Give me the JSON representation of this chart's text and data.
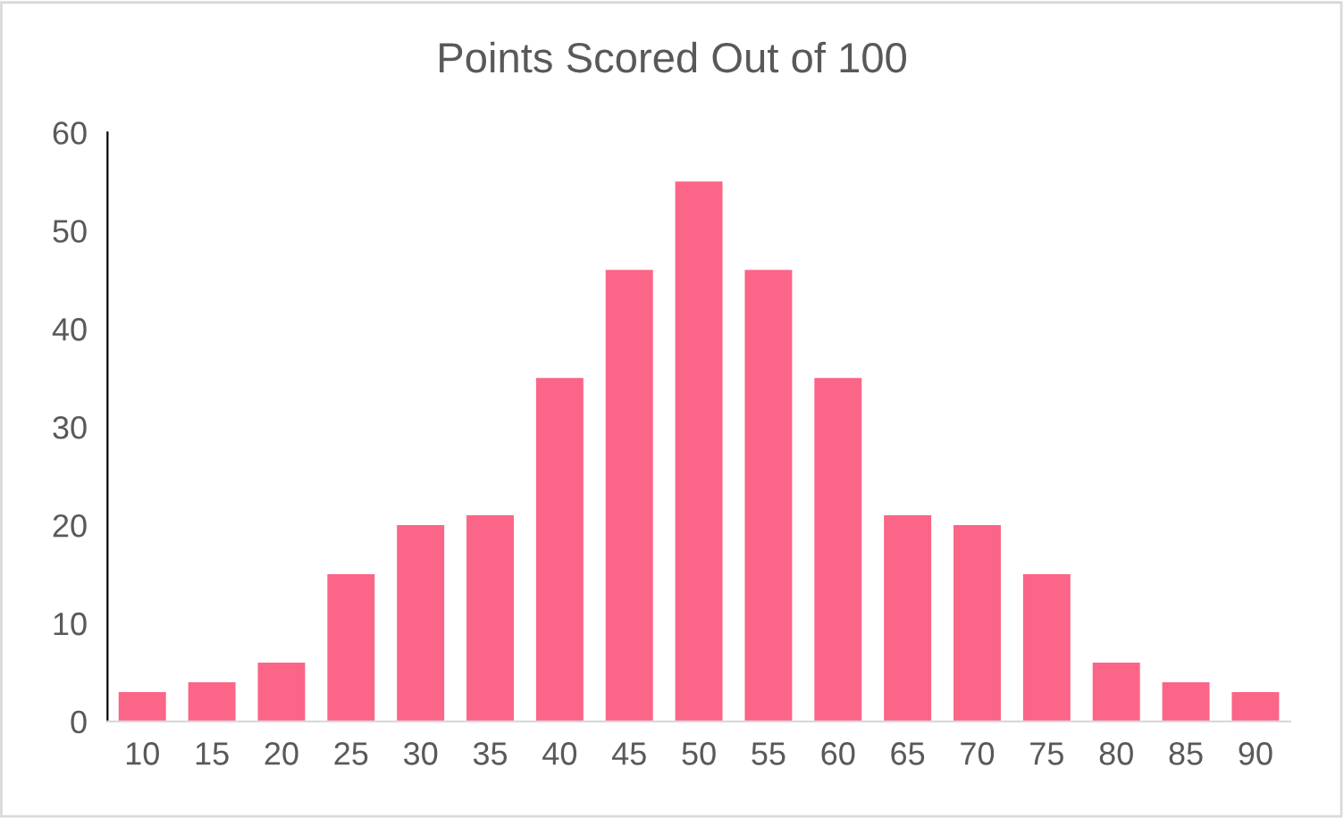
{
  "chart_data": {
    "type": "bar",
    "title": "Points Scored Out of 100",
    "categories": [
      "10",
      "15",
      "20",
      "25",
      "30",
      "35",
      "40",
      "45",
      "50",
      "55",
      "60",
      "65",
      "70",
      "75",
      "80",
      "85",
      "90"
    ],
    "values": [
      3,
      4,
      6,
      15,
      20,
      21,
      35,
      46,
      55,
      46,
      35,
      21,
      20,
      15,
      6,
      4,
      3
    ],
    "color": "#fb6587",
    "ylim": [
      0,
      60
    ],
    "yticks": [
      0,
      10,
      20,
      30,
      40,
      50,
      60
    ],
    "grid": false,
    "legend": false
  }
}
